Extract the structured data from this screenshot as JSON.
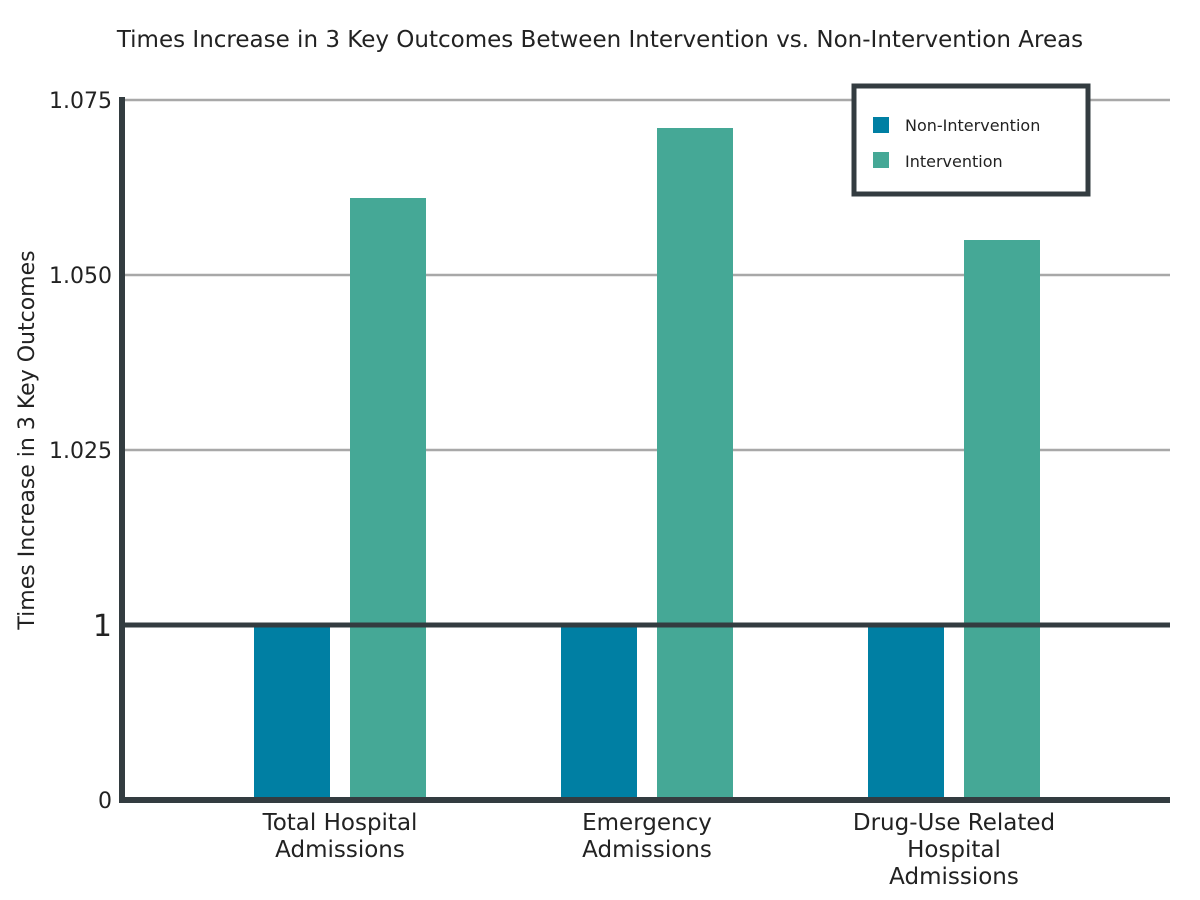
{
  "chart_data": {
    "type": "bar",
    "title": "Times Increase in 3 Key Outcomes Between Intervention vs. Non-Intervention Areas",
    "ylabel": "Times Increase in 3 Key Outcomes",
    "xlabel": "",
    "categories": [
      [
        "Total Hospital",
        "Admissions"
      ],
      [
        "Emergency",
        "Admissions"
      ],
      [
        "Drug-Use Related",
        "Hospital",
        "Admissions"
      ]
    ],
    "series": [
      {
        "name": "Non-Intervention",
        "color": "#007fa3",
        "values": [
          1,
          1,
          1
        ]
      },
      {
        "name": "Intervention",
        "color": "#45a896",
        "values": [
          1.061,
          1.071,
          1.055
        ]
      }
    ],
    "y_ticks": [
      {
        "value": 0,
        "label": "0"
      },
      {
        "value": 1,
        "label": "1"
      },
      {
        "value": 1.025,
        "label": "1.025"
      },
      {
        "value": 1.05,
        "label": "1.050"
      },
      {
        "value": 1.075,
        "label": "1.075"
      }
    ],
    "ylim": [
      0,
      1.075
    ],
    "axis_break": "broken y-axis: 0 to 1, then 1 to 1.075",
    "grid": true,
    "legend_position": "top-right"
  }
}
